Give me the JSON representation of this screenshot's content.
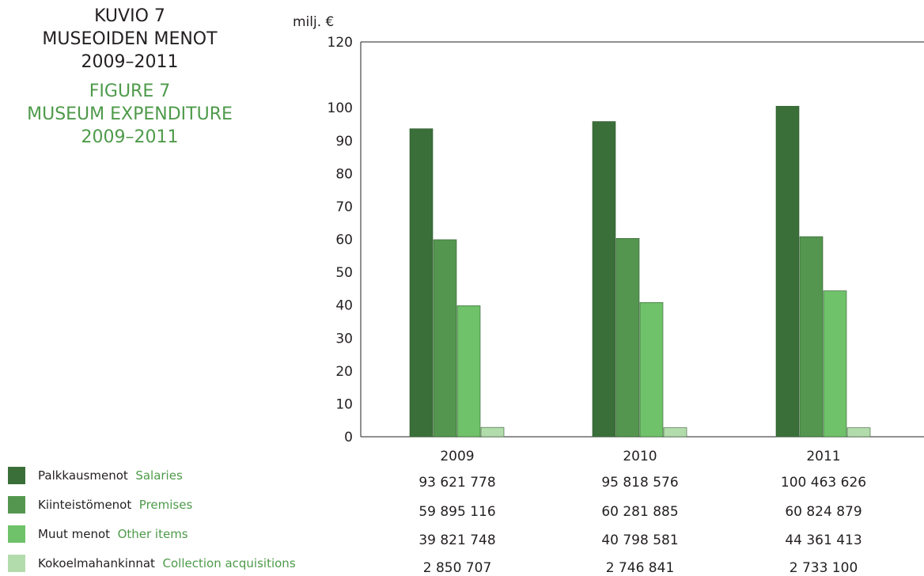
{
  "title": {
    "fi_lines": [
      "KUVIO 7",
      "MUSEOIDEN MENOT",
      "2009–2011"
    ],
    "en_lines": [
      "FIGURE 7",
      "MUSEUM EXPENDITURE",
      "2009–2011"
    ]
  },
  "colors": {
    "text": "#231f20",
    "english_text": "#4e9a4a",
    "axis": "#231f20"
  },
  "legend": [
    {
      "fi": "Palkkausmenot",
      "en": "Salaries",
      "color": "#3a6f39"
    },
    {
      "fi": "Kiinteistömenot",
      "en": "Premises",
      "color": "#54964f"
    },
    {
      "fi": "Muut menot",
      "en": "Other items",
      "color": "#6fc269"
    },
    {
      "fi": "Kokoelmahankinnat",
      "en": "Collection acquisitions",
      "color": "#b3dcac"
    }
  ],
  "value_table": [
    [
      "93 621 778",
      "95 818 576",
      "100 463 626"
    ],
    [
      "59 895 116",
      "60 281 885",
      "60 824 879"
    ],
    [
      "39 821 748",
      "40 798 581",
      "44 361 413"
    ],
    [
      "2 850 707",
      "2 746 841",
      "2 733 100"
    ]
  ],
  "chart_data": {
    "type": "bar",
    "title": "",
    "ylabel": "milj. €",
    "ylim": [
      0,
      120
    ],
    "yticks": [
      0,
      10,
      20,
      30,
      40,
      50,
      60,
      70,
      80,
      90,
      100,
      120
    ],
    "categories": [
      "2009",
      "2010",
      "2011"
    ],
    "series": [
      {
        "name": "Palkkausmenot Salaries",
        "values": [
          93.621778,
          95.818576,
          100.463626
        ]
      },
      {
        "name": "Kiinteistömenot Premises",
        "values": [
          59.895116,
          60.281885,
          60.824879
        ]
      },
      {
        "name": "Muut menot Other items",
        "values": [
          39.821748,
          40.798581,
          44.361413
        ]
      },
      {
        "name": "Kokoelmahankinnat Collection acquisitions",
        "values": [
          2.850707,
          2.746841,
          2.7331
        ]
      }
    ],
    "grid": false,
    "legend_position": "bottom-left"
  }
}
